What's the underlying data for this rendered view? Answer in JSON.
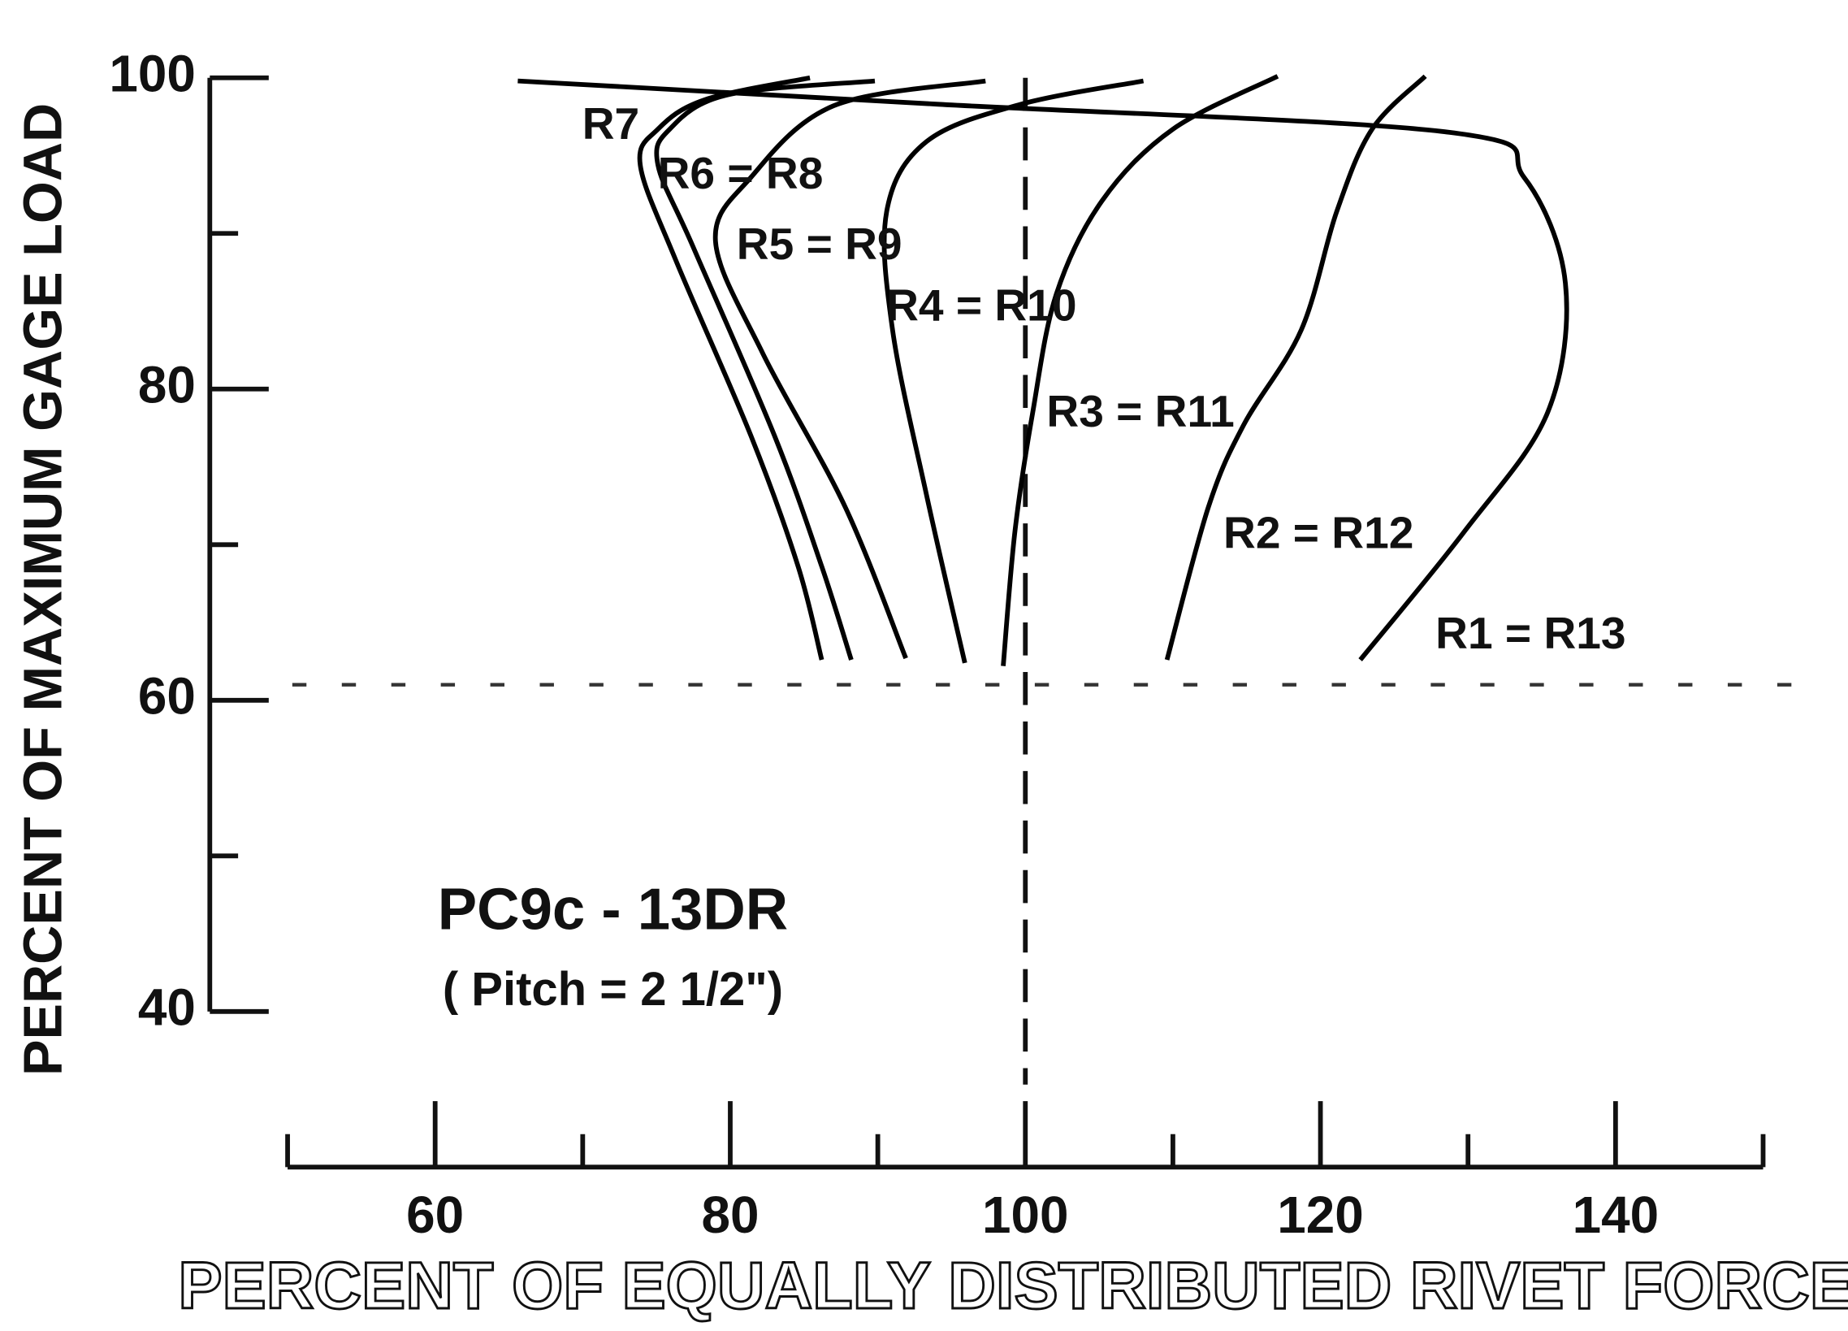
{
  "chart_data": {
    "type": "line",
    "x_label": "PERCENT OF EQUALLY DISTRIBUTED RIVET FORCE",
    "y_label": "PERCENT OF MAXIMUM GAGE LOAD",
    "annotations": [
      "PC9c - 13DR",
      "( Pitch = 2 1/2\")"
    ],
    "xlim": [
      50,
      150
    ],
    "xticks": [
      60,
      80,
      100,
      120,
      140
    ],
    "xminorticks": [
      50,
      70,
      90,
      110,
      130,
      150
    ],
    "ylim": [
      30,
      100
    ],
    "yticks": [
      40,
      60,
      80,
      100
    ],
    "yminorticks": [
      50,
      70,
      90
    ],
    "vlines": [
      100
    ],
    "hlines": [
      61
    ],
    "series": [
      {
        "name": "R1 = R13",
        "color": "#000000",
        "x": [
          65.6,
          94.1,
          128.7,
          133.8,
          136.6,
          135.4,
          129.8,
          122.7
        ],
        "values": [
          99.8,
          98.3,
          96.5,
          93.6,
          86.8,
          78.5,
          70.9,
          62.6
        ]
      },
      {
        "name": "R2 = R12",
        "color": "#000000",
        "x": [
          127.1,
          123.5,
          121.1,
          118.7,
          114.8,
          112.4,
          109.6
        ],
        "values": [
          100.1,
          96.7,
          91.4,
          83.8,
          77.7,
          72.4,
          62.6
        ]
      },
      {
        "name": "R3 = R11",
        "color": "#000000",
        "x": [
          117.1,
          110.0,
          105.2,
          102.1,
          100.5,
          99.3,
          98.5
        ],
        "values": [
          100.1,
          96.7,
          92.1,
          86.1,
          78.5,
          70.9,
          62.2
        ]
      },
      {
        "name": "R4 = R10",
        "color": "#000000",
        "x": [
          108.0,
          99.7,
          93.3,
          90.6,
          91.0,
          93.3,
          95.9
        ],
        "values": [
          99.8,
          98.3,
          95.9,
          91.4,
          83.8,
          73.2,
          62.4
        ]
      },
      {
        "name": "R5 = R9",
        "color": "#000000",
        "x": [
          97.3,
          87.0,
          81.4,
          79.0,
          82.2,
          87.8,
          91.9
        ],
        "values": [
          99.8,
          98.2,
          93.6,
          89.5,
          82.3,
          72.4,
          62.7
        ]
      },
      {
        "name": "R6 = R8",
        "color": "#000000",
        "x": [
          89.8,
          79.8,
          75.9,
          75.1,
          77.5,
          83.0,
          86.2,
          88.2
        ],
        "values": [
          99.8,
          98.9,
          96.7,
          94.4,
          89.1,
          77.0,
          68.6,
          62.6
        ]
      },
      {
        "name": "R7",
        "color": "#000000",
        "x": [
          85.4,
          78.3,
          75.1,
          73.9,
          76.3,
          81.4,
          84.6,
          86.2
        ],
        "values": [
          100,
          98.6,
          96.7,
          94.4,
          88.3,
          77.0,
          68.6,
          62.6
        ]
      }
    ]
  }
}
